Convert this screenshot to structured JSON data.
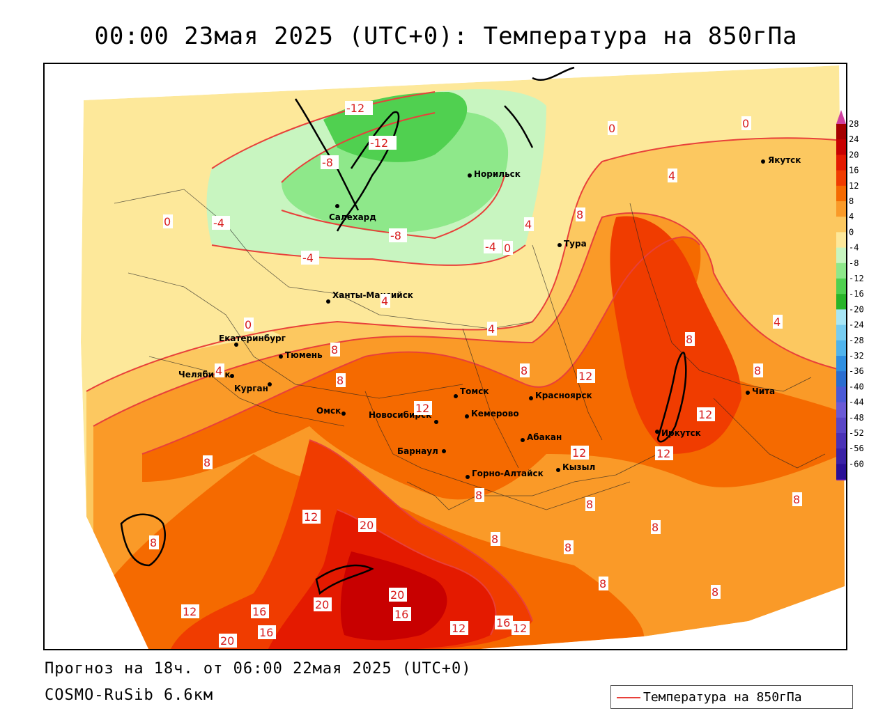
{
  "title": "00:00 23мая 2025 (UTC+0): Температура на 850гПа",
  "forecast_line": "Прогноз на 18ч. от 06:00 22мая 2025 (UTC+0)",
  "model_line": "COSMO-RuSib 6.6км",
  "legend": {
    "label": "Температура на 850гПа",
    "line_color": "#e8403a"
  },
  "colorbar": {
    "levels": [
      "28",
      "24",
      "20",
      "16",
      "12",
      "8",
      "4",
      "0",
      "-4",
      "-8",
      "-12",
      "-16",
      "-20",
      "-24",
      "-28",
      "-32",
      "-36",
      "-40",
      "-44",
      "-48",
      "-52",
      "-56",
      "-60"
    ],
    "colors": [
      "#a50000",
      "#c80000",
      "#e41a00",
      "#f03c00",
      "#f56a00",
      "#fa9a28",
      "#fcc860",
      "#fde89a",
      "#c8f5c0",
      "#8ee88a",
      "#50d050",
      "#28b428",
      "#a8e6f5",
      "#78cdf0",
      "#50b4ec",
      "#2f8fe0",
      "#2a6ed0",
      "#4a5ad6",
      "#6a5ad6",
      "#5a46c6",
      "#4a32b6",
      "#3a22a6",
      "#2a1096"
    ],
    "top_cap_color": "#d040a0",
    "bottom_cap_color": "#7a20c0"
  },
  "cities": [
    {
      "id": "yakutsk",
      "name": "Якутск"
    },
    {
      "id": "norilsk",
      "name": "Норильск"
    },
    {
      "id": "salekhard",
      "name": "Салехард"
    },
    {
      "id": "tura",
      "name": "Тура"
    },
    {
      "id": "khanty",
      "name": "Ханты-Мансийск"
    },
    {
      "id": "ekb",
      "name": "Екатеринбург"
    },
    {
      "id": "tyumen",
      "name": "Тюмень"
    },
    {
      "id": "chelyabinsk",
      "name": "Челябинск"
    },
    {
      "id": "kurgan",
      "name": "Курган"
    },
    {
      "id": "omsk",
      "name": "Омск"
    },
    {
      "id": "novosibirsk",
      "name": "Новосибирск"
    },
    {
      "id": "tomsk",
      "name": "Томск"
    },
    {
      "id": "kemerovo",
      "name": "Кемерово"
    },
    {
      "id": "krasnoyarsk",
      "name": "Красноярск"
    },
    {
      "id": "abakan",
      "name": "Абакан"
    },
    {
      "id": "barnaul",
      "name": "Барнаул"
    },
    {
      "id": "gorno",
      "name": "Горно-Алтайск"
    },
    {
      "id": "kyzyl",
      "name": "Кызыл"
    },
    {
      "id": "irkutsk",
      "name": "Иркутск"
    },
    {
      "id": "chita",
      "name": "Чита"
    }
  ],
  "isotherm_labels": [
    "-12",
    "-12",
    "-8",
    "-8",
    "-4",
    "-4",
    "0",
    "0",
    "0",
    "0",
    "4",
    "4",
    "4",
    "4",
    "4",
    "4",
    "8",
    "8",
    "8",
    "8",
    "8",
    "8",
    "8",
    "8",
    "8",
    "8",
    "8",
    "8",
    "8",
    "8",
    "8",
    "8",
    "12",
    "12",
    "12",
    "12",
    "12",
    "12",
    "12",
    "12",
    "12",
    "16",
    "16",
    "16",
    "16",
    "20",
    "20",
    "20",
    "20",
    "-4",
    "0"
  ]
}
